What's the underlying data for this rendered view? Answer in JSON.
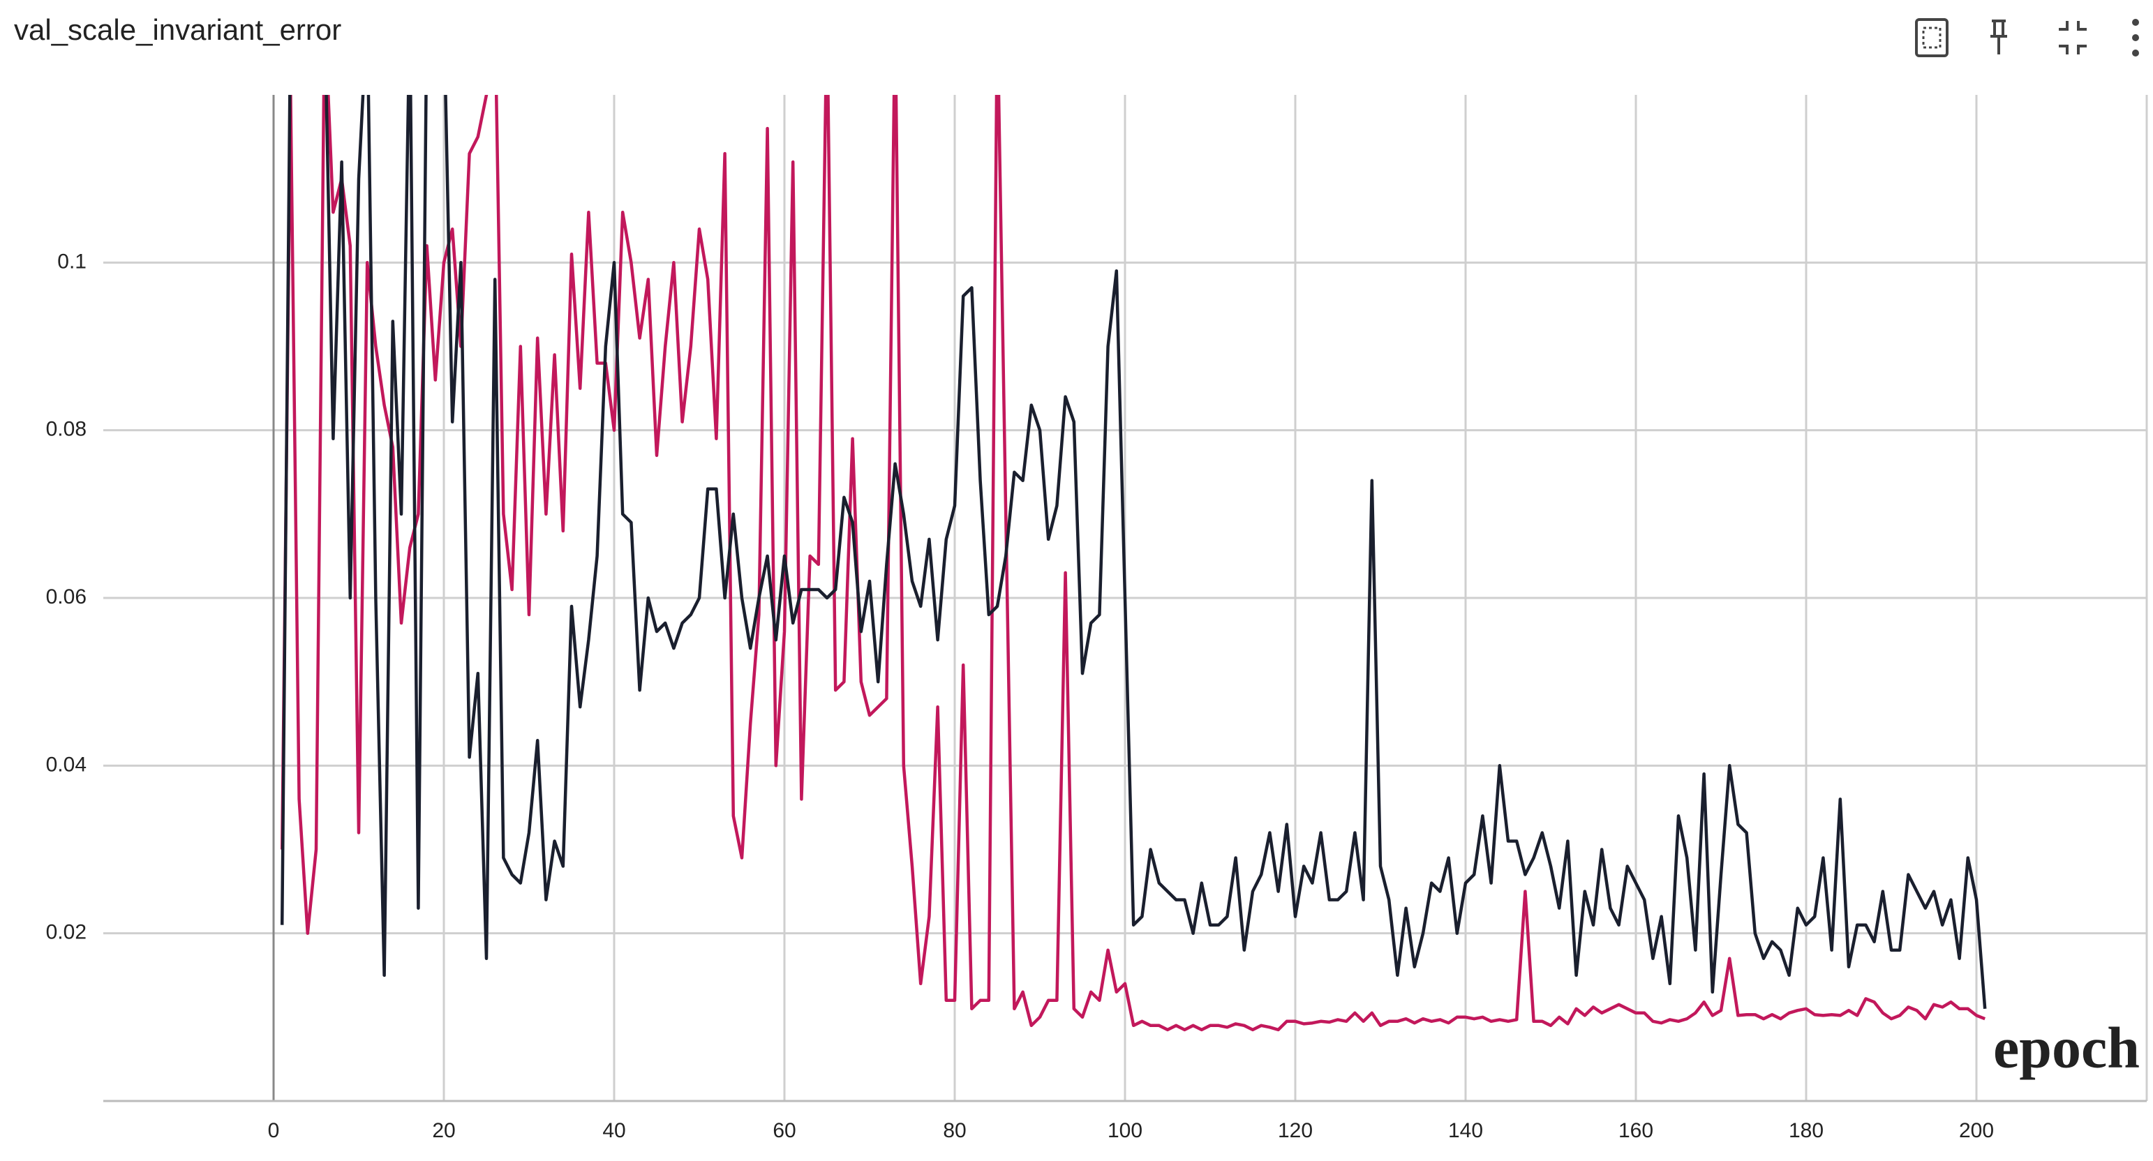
{
  "chart_data": {
    "type": "line",
    "title": "val_scale_invariant_error",
    "annotation": "epoch",
    "grid": true,
    "xlim": [
      -20,
      220
    ],
    "ylim": [
      0,
      0.12
    ],
    "xticks": [
      0,
      20,
      40,
      60,
      80,
      100,
      120,
      140,
      160,
      180,
      200
    ],
    "yticks": [
      0.02,
      0.04,
      0.06,
      0.08,
      0.1
    ],
    "x": [
      1,
      2,
      3,
      4,
      5,
      6,
      7,
      8,
      9,
      10,
      11,
      12,
      13,
      14,
      15,
      16,
      17,
      18,
      19,
      20,
      21,
      22,
      23,
      24,
      25,
      26,
      27,
      28,
      29,
      30,
      31,
      32,
      33,
      34,
      35,
      36,
      37,
      38,
      39,
      40,
      41,
      42,
      43,
      44,
      45,
      46,
      47,
      48,
      49,
      50,
      51,
      52,
      53,
      54,
      55,
      56,
      57,
      58,
      59,
      60,
      61,
      62,
      63,
      64,
      65,
      66,
      67,
      68,
      69,
      70,
      71,
      72,
      73,
      74,
      75,
      76,
      77,
      78,
      79,
      80,
      81,
      82,
      83,
      84,
      85,
      86,
      87,
      88,
      89,
      90,
      91,
      92,
      93,
      94,
      95,
      96,
      97,
      98,
      99,
      100,
      101,
      102,
      103,
      104,
      105,
      106,
      107,
      108,
      109,
      110,
      111,
      112,
      113,
      114,
      115,
      116,
      117,
      118,
      119,
      120,
      121,
      122,
      123,
      124,
      125,
      126,
      127,
      128,
      129,
      130,
      131,
      132,
      133,
      134,
      135,
      136,
      137,
      138,
      139,
      140,
      141,
      142,
      143,
      144,
      145,
      146,
      147,
      148,
      149,
      150,
      151,
      152,
      153,
      154,
      155,
      156,
      157,
      158,
      159,
      160,
      161,
      162,
      163,
      164,
      165,
      166,
      167,
      168,
      169,
      170,
      171,
      172,
      173,
      174,
      175,
      176,
      177,
      178,
      179,
      180,
      181,
      182,
      183,
      184,
      185,
      186,
      187,
      188,
      189,
      190,
      191,
      192,
      193,
      194,
      195,
      196,
      197,
      198,
      199,
      200,
      201
    ],
    "series": [
      {
        "color": "#c2185b",
        "values": [
          0.03,
          0.12,
          0.036,
          0.02,
          0.03,
          0.13,
          0.106,
          0.11,
          0.102,
          0.032,
          0.1,
          0.09,
          0.083,
          0.078,
          0.057,
          0.066,
          0.07,
          0.102,
          0.086,
          0.1,
          0.104,
          0.09,
          0.113,
          0.115,
          0.12,
          0.13,
          0.07,
          0.061,
          0.09,
          0.058,
          0.091,
          0.07,
          0.089,
          0.068,
          0.101,
          0.085,
          0.106,
          0.088,
          0.088,
          0.08,
          0.106,
          0.1,
          0.091,
          0.098,
          0.077,
          0.09,
          0.1,
          0.081,
          0.09,
          0.104,
          0.098,
          0.079,
          0.113,
          0.034,
          0.029,
          0.045,
          0.058,
          0.116,
          0.04,
          0.056,
          0.112,
          0.036,
          0.065,
          0.064,
          0.13,
          0.049,
          0.05,
          0.079,
          0.05,
          0.046,
          0.047,
          0.048,
          0.13,
          0.04,
          0.028,
          0.014,
          0.022,
          0.047,
          0.012,
          0.012,
          0.052,
          0.011,
          0.012,
          0.012,
          0.13,
          0.07,
          0.011,
          0.013,
          0.009,
          0.01,
          0.012,
          0.012,
          0.063,
          0.011,
          0.01,
          0.013,
          0.012,
          0.018,
          0.013,
          0.014,
          0.009,
          0.0095,
          0.009,
          0.009,
          0.0085,
          0.009,
          0.0085,
          0.009,
          0.0085,
          0.009,
          0.009,
          0.0088,
          0.0092,
          0.009,
          0.0085,
          0.009,
          0.0088,
          0.0085,
          0.0095,
          0.0095,
          0.0092,
          0.0093,
          0.0095,
          0.0094,
          0.0097,
          0.0095,
          0.0105,
          0.0095,
          0.0105,
          0.009,
          0.0095,
          0.0095,
          0.0098,
          0.0093,
          0.0098,
          0.0095,
          0.0097,
          0.0093,
          0.01,
          0.01,
          0.0098,
          0.01,
          0.0095,
          0.0097,
          0.0095,
          0.0097,
          0.025,
          0.0095,
          0.0095,
          0.009,
          0.01,
          0.0092,
          0.011,
          0.0102,
          0.0112,
          0.0105,
          0.011,
          0.0115,
          0.011,
          0.0105,
          0.0105,
          0.0095,
          0.0093,
          0.0097,
          0.0095,
          0.0098,
          0.0105,
          0.0118,
          0.0102,
          0.0108,
          0.017,
          0.0102,
          0.0103,
          0.0103,
          0.0098,
          0.0103,
          0.0098,
          0.0105,
          0.0108,
          0.011,
          0.0103,
          0.0102,
          0.0103,
          0.0102,
          0.0108,
          0.0102,
          0.0122,
          0.0118,
          0.0105,
          0.0098,
          0.0102,
          0.0112,
          0.0108,
          0.0098,
          0.0115,
          0.0112,
          0.0118,
          0.011,
          0.011,
          0.0102,
          0.0098
        ]
      },
      {
        "color": "#1a1f2e",
        "values": [
          0.021,
          0.13,
          0.13,
          0.13,
          0.13,
          0.13,
          0.079,
          0.112,
          0.06,
          0.11,
          0.13,
          0.06,
          0.015,
          0.093,
          0.07,
          0.13,
          0.023,
          0.13,
          0.13,
          0.13,
          0.081,
          0.1,
          0.041,
          0.051,
          0.017,
          0.098,
          0.029,
          0.027,
          0.026,
          0.032,
          0.043,
          0.024,
          0.031,
          0.028,
          0.059,
          0.047,
          0.055,
          0.065,
          0.09,
          0.1,
          0.07,
          0.069,
          0.049,
          0.06,
          0.056,
          0.057,
          0.054,
          0.057,
          0.058,
          0.06,
          0.073,
          0.073,
          0.06,
          0.07,
          0.06,
          0.054,
          0.06,
          0.065,
          0.055,
          0.065,
          0.057,
          0.061,
          0.061,
          0.061,
          0.06,
          0.061,
          0.072,
          0.069,
          0.056,
          0.062,
          0.05,
          0.064,
          0.076,
          0.07,
          0.062,
          0.059,
          0.067,
          0.055,
          0.067,
          0.071,
          0.096,
          0.097,
          0.074,
          0.058,
          0.059,
          0.065,
          0.075,
          0.074,
          0.083,
          0.08,
          0.067,
          0.071,
          0.084,
          0.081,
          0.051,
          0.057,
          0.058,
          0.09,
          0.099,
          0.06,
          0.021,
          0.022,
          0.03,
          0.026,
          0.025,
          0.024,
          0.024,
          0.02,
          0.026,
          0.021,
          0.021,
          0.022,
          0.029,
          0.018,
          0.025,
          0.027,
          0.032,
          0.025,
          0.033,
          0.022,
          0.028,
          0.026,
          0.032,
          0.024,
          0.024,
          0.025,
          0.032,
          0.024,
          0.074,
          0.028,
          0.024,
          0.015,
          0.023,
          0.016,
          0.02,
          0.026,
          0.025,
          0.029,
          0.02,
          0.026,
          0.027,
          0.034,
          0.026,
          0.04,
          0.031,
          0.031,
          0.027,
          0.029,
          0.032,
          0.028,
          0.023,
          0.031,
          0.015,
          0.025,
          0.021,
          0.03,
          0.023,
          0.021,
          0.028,
          0.026,
          0.024,
          0.017,
          0.022,
          0.014,
          0.034,
          0.029,
          0.018,
          0.039,
          0.013,
          0.027,
          0.04,
          0.033,
          0.032,
          0.02,
          0.017,
          0.019,
          0.018,
          0.015,
          0.023,
          0.021,
          0.022,
          0.029,
          0.018,
          0.036,
          0.016,
          0.021,
          0.021,
          0.019,
          0.025,
          0.018,
          0.018,
          0.027,
          0.025,
          0.023,
          0.025,
          0.021,
          0.024,
          0.017,
          0.029,
          0.024,
          0.011
        ]
      }
    ]
  }
}
